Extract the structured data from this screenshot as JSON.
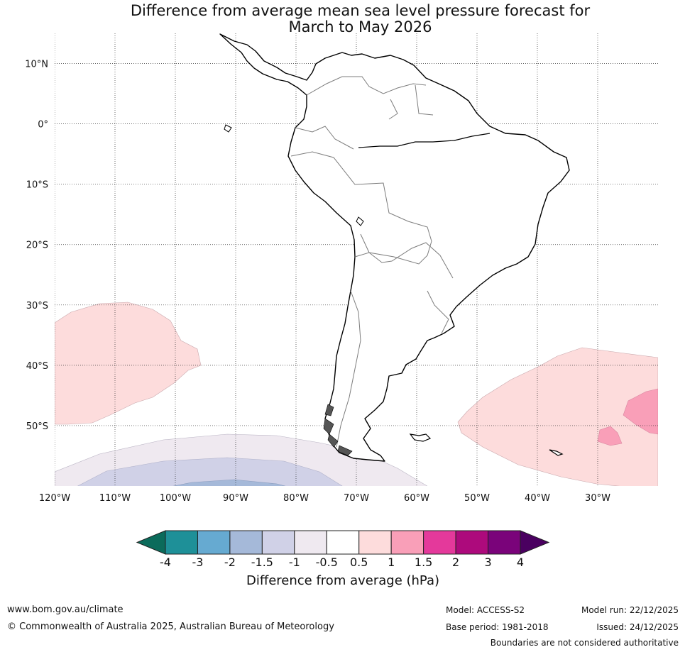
{
  "title": {
    "line1": "Difference from average mean sea level pressure forecast for",
    "line2": "March to May 2026"
  },
  "map": {
    "lat_labels": [
      "10°N",
      "0°",
      "10°S",
      "20°S",
      "30°S",
      "40°S",
      "50°S"
    ],
    "lon_labels": [
      "120°W",
      "110°W",
      "100°W",
      "90°W",
      "80°W",
      "70°W",
      "60°W",
      "50°W",
      "40°W",
      "30°W"
    ],
    "lat_values": [
      10,
      0,
      -10,
      -20,
      -30,
      -40,
      -50
    ],
    "lon_values": [
      -120,
      -110,
      -100,
      -90,
      -80,
      -70,
      -60,
      -50,
      -40,
      -30
    ],
    "extent": {
      "lon_min": -120,
      "lon_max": -20,
      "lat_min": -60,
      "lat_max": 15
    }
  },
  "colorbar": {
    "title": "Difference from average (hPa)",
    "tick_labels": [
      "-4",
      "-3",
      "-2",
      "-1.5",
      "-1",
      "-0.5",
      "0.5",
      "1",
      "1.5",
      "2",
      "3",
      "4"
    ],
    "bins": [
      {
        "color": "#1e9098"
      },
      {
        "color": "#66aad1"
      },
      {
        "color": "#a5b9d9"
      },
      {
        "color": "#d0d1e7"
      },
      {
        "color": "#efe9f0"
      },
      {
        "color": "#ffffff"
      },
      {
        "color": "#fddcdc"
      },
      {
        "color": "#f99fb8"
      },
      {
        "color": "#e4399b"
      },
      {
        "color": "#ad0a7c"
      },
      {
        "color": "#7a037a"
      }
    ],
    "under_color": "#0b6b5b",
    "over_color": "#4a0060"
  },
  "footer": {
    "website": "www.bom.gov.au/climate",
    "copyright": "© Commonwealth of Australia 2025, Australian Bureau of Meteorology",
    "model": "Model: ACCESS-S2",
    "base_period": "Base period: 1981-2018",
    "model_run": "Model run: 22/12/2025",
    "issued": "Issued: 24/12/2025",
    "disclaimer": "Boundaries are not considered authoritative"
  }
}
